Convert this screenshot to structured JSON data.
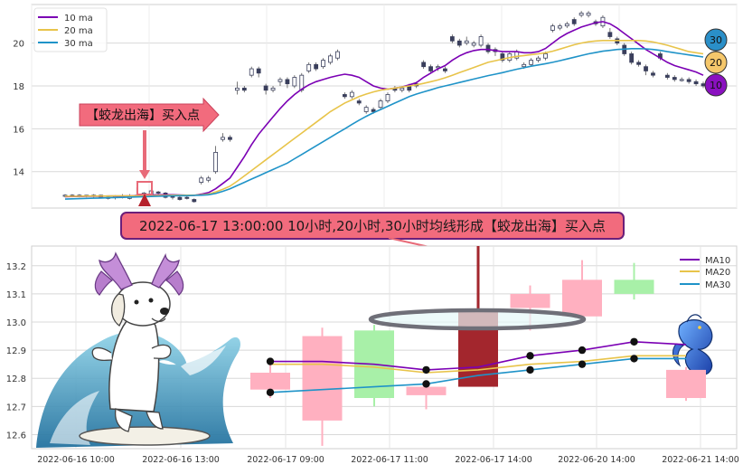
{
  "colors": {
    "ma10": "#7b00b4",
    "ma20": "#e8c44a",
    "ma30": "#1f93c8",
    "up": "#a8f0a8",
    "down": "#ffb0c0",
    "highlight": "#a3262d",
    "arrow": "#e86a78",
    "banner_fill": "#f26b7d",
    "banner_border": "#6b1f7a",
    "grid": "#d8d8d8"
  },
  "annotation": {
    "arrow_label": "【蛟龙出海】买入点",
    "banner": "2022-06-17 13:00:00 10小时,20小时,30小时均线形成【蛟龙出海】买入点",
    "markers": [
      "30",
      "20",
      "10"
    ]
  },
  "chart_data": [
    {
      "type": "candlestick",
      "legend_position": "top-left",
      "grid": true,
      "ylim": [
        12.3,
        21.8
      ],
      "y_ticks": [
        "14",
        "16",
        "18",
        "20"
      ],
      "legend": [
        {
          "name": "10 ma",
          "color": "#7b00b4"
        },
        {
          "name": "20 ma",
          "color": "#e8c44a"
        },
        {
          "name": "30 ma",
          "color": "#1f93c8"
        }
      ],
      "candles": [
        [
          12.85,
          12.9,
          12.8,
          12.95
        ],
        [
          12.9,
          12.85,
          12.8,
          12.95
        ],
        [
          12.85,
          12.9,
          12.8,
          12.95
        ],
        [
          12.9,
          12.85,
          12.8,
          12.92
        ],
        [
          12.85,
          12.9,
          12.75,
          12.95
        ],
        [
          12.9,
          12.8,
          12.75,
          12.92
        ],
        [
          12.8,
          12.75,
          12.7,
          12.85
        ],
        [
          12.8,
          12.85,
          12.7,
          12.9
        ],
        [
          12.85,
          12.8,
          12.75,
          12.95
        ],
        [
          12.75,
          12.85,
          12.7,
          12.95
        ],
        [
          12.85,
          12.9,
          12.8,
          13.27
        ],
        [
          12.9,
          13.0,
          12.85,
          13.05
        ],
        [
          12.95,
          13.1,
          12.9,
          13.15
        ],
        [
          13.05,
          13.0,
          12.95,
          13.1
        ],
        [
          13.0,
          12.8,
          12.75,
          13.05
        ],
        [
          12.85,
          12.8,
          12.7,
          12.9
        ],
        [
          12.8,
          12.7,
          12.65,
          12.85
        ],
        [
          12.8,
          12.75,
          12.7,
          12.85
        ],
        [
          12.7,
          12.6,
          12.55,
          12.75
        ],
        [
          13.5,
          13.7,
          13.4,
          13.8
        ],
        [
          13.6,
          13.7,
          13.5,
          13.8
        ],
        [
          14.0,
          14.9,
          13.9,
          15.2
        ],
        [
          15.5,
          15.6,
          15.4,
          15.8
        ],
        [
          15.6,
          15.5,
          15.4,
          15.7
        ],
        [
          17.8,
          17.9,
          17.6,
          18.2
        ],
        [
          17.9,
          17.8,
          17.7,
          18.0
        ],
        [
          18.5,
          18.8,
          18.4,
          18.9
        ],
        [
          18.8,
          18.6,
          18.4,
          18.9
        ],
        [
          18.0,
          17.8,
          17.6,
          18.1
        ],
        [
          17.8,
          17.9,
          17.7,
          18.0
        ],
        [
          18.2,
          18.3,
          18.0,
          18.4
        ],
        [
          18.3,
          18.1,
          17.9,
          18.4
        ],
        [
          18.0,
          18.4,
          17.9,
          18.5
        ],
        [
          17.8,
          18.5,
          17.7,
          18.6
        ],
        [
          18.7,
          19.0,
          18.6,
          19.1
        ],
        [
          19.0,
          18.8,
          18.7,
          19.1
        ],
        [
          18.9,
          19.2,
          18.8,
          19.3
        ],
        [
          19.1,
          19.4,
          19.0,
          19.5
        ],
        [
          19.3,
          19.6,
          19.2,
          19.7
        ],
        [
          17.6,
          17.5,
          17.4,
          17.7
        ],
        [
          17.5,
          17.7,
          17.4,
          17.8
        ],
        [
          17.3,
          17.2,
          17.1,
          17.4
        ],
        [
          16.8,
          17.0,
          16.7,
          17.1
        ],
        [
          16.9,
          16.8,
          16.7,
          17.0
        ],
        [
          17.0,
          17.3,
          16.9,
          17.4
        ],
        [
          17.3,
          17.6,
          17.2,
          17.7
        ],
        [
          17.9,
          17.8,
          17.7,
          18.0
        ],
        [
          17.8,
          17.9,
          17.7,
          18.0
        ],
        [
          18.0,
          17.8,
          17.7,
          18.1
        ],
        [
          18.1,
          18.0,
          17.9,
          18.2
        ],
        [
          19.1,
          18.9,
          18.8,
          19.2
        ],
        [
          18.9,
          18.7,
          18.6,
          19.0
        ],
        [
          18.9,
          18.9,
          18.7,
          19.0
        ],
        [
          18.8,
          18.7,
          18.6,
          18.9
        ],
        [
          20.3,
          20.1,
          20.0,
          20.4
        ],
        [
          20.1,
          19.9,
          19.8,
          20.2
        ],
        [
          20.0,
          20.1,
          19.9,
          20.3
        ],
        [
          19.9,
          20.0,
          19.8,
          20.1
        ],
        [
          19.9,
          20.3,
          19.8,
          20.4
        ],
        [
          19.9,
          19.6,
          19.5,
          20.0
        ],
        [
          19.7,
          19.6,
          19.4,
          19.8
        ],
        [
          19.5,
          19.2,
          19.1,
          19.6
        ],
        [
          19.2,
          19.5,
          19.1,
          19.6
        ],
        [
          19.3,
          19.6,
          19.2,
          19.7
        ],
        [
          18.9,
          19.0,
          18.8,
          19.1
        ],
        [
          19.0,
          19.2,
          18.9,
          19.3
        ],
        [
          19.2,
          19.3,
          19.1,
          19.4
        ],
        [
          19.3,
          19.5,
          19.2,
          19.6
        ],
        [
          20.6,
          20.8,
          20.5,
          20.9
        ],
        [
          20.7,
          20.8,
          20.6,
          20.9
        ],
        [
          20.8,
          20.9,
          20.7,
          21.0
        ],
        [
          21.1,
          20.9,
          20.8,
          21.2
        ],
        [
          21.3,
          21.4,
          21.2,
          21.5
        ],
        [
          21.3,
          21.4,
          21.2,
          21.5
        ],
        [
          21.0,
          20.9,
          20.8,
          21.1
        ],
        [
          20.8,
          21.2,
          20.7,
          21.3
        ],
        [
          20.5,
          20.3,
          20.2,
          20.7
        ],
        [
          20.2,
          20.0,
          19.9,
          20.3
        ],
        [
          19.9,
          19.5,
          19.4,
          20.0
        ],
        [
          19.5,
          19.1,
          19.0,
          19.6
        ],
        [
          19.1,
          19.0,
          18.9,
          19.2
        ],
        [
          18.9,
          18.7,
          18.5,
          19.0
        ],
        [
          18.6,
          18.5,
          18.4,
          18.7
        ],
        [
          19.5,
          19.3,
          19.2,
          19.6
        ],
        [
          18.5,
          18.4,
          18.3,
          18.6
        ],
        [
          18.4,
          18.3,
          18.2,
          18.5
        ],
        [
          18.3,
          18.3,
          18.2,
          18.4
        ],
        [
          18.3,
          18.2,
          18.1,
          18.4
        ],
        [
          18.2,
          18.1,
          18.0,
          18.3
        ],
        [
          18.1,
          18.0,
          17.9,
          18.2
        ]
      ],
      "ma10": [
        12.83,
        12.84,
        12.84,
        12.85,
        12.85,
        12.85,
        12.86,
        12.86,
        12.86,
        12.87,
        12.88,
        12.89,
        12.91,
        12.92,
        12.92,
        12.92,
        12.91,
        12.9,
        12.89,
        12.95,
        13.02,
        13.2,
        13.45,
        13.7,
        14.2,
        14.7,
        15.25,
        15.75,
        16.15,
        16.55,
        16.95,
        17.3,
        17.6,
        17.85,
        18.05,
        18.2,
        18.3,
        18.4,
        18.48,
        18.55,
        18.5,
        18.4,
        18.2,
        18.0,
        17.9,
        17.85,
        17.9,
        17.95,
        18.05,
        18.15,
        18.4,
        18.6,
        18.8,
        18.95,
        19.2,
        19.4,
        19.55,
        19.65,
        19.7,
        19.7,
        19.65,
        19.6,
        19.6,
        19.6,
        19.55,
        19.55,
        19.6,
        19.75,
        20.0,
        20.25,
        20.45,
        20.6,
        20.75,
        20.85,
        20.95,
        21.0,
        20.9,
        20.7,
        20.45,
        20.2,
        19.95,
        19.7,
        19.5,
        19.3,
        19.1,
        18.95,
        18.85,
        18.75,
        18.65,
        18.5
      ],
      "ma20": [
        12.85,
        12.85,
        12.85,
        12.86,
        12.86,
        12.86,
        12.86,
        12.87,
        12.87,
        12.87,
        12.87,
        12.88,
        12.88,
        12.89,
        12.89,
        12.9,
        12.9,
        12.9,
        12.9,
        12.92,
        12.95,
        13.05,
        13.18,
        13.32,
        13.55,
        13.8,
        14.05,
        14.3,
        14.55,
        14.8,
        15.05,
        15.3,
        15.55,
        15.8,
        16.05,
        16.3,
        16.55,
        16.8,
        17.0,
        17.2,
        17.35,
        17.5,
        17.62,
        17.72,
        17.8,
        17.85,
        17.9,
        17.95,
        18.0,
        18.05,
        18.12,
        18.2,
        18.28,
        18.38,
        18.5,
        18.62,
        18.74,
        18.86,
        18.98,
        19.1,
        19.18,
        19.25,
        19.32,
        19.38,
        19.42,
        19.46,
        19.5,
        19.55,
        19.62,
        19.72,
        19.82,
        19.92,
        20.0,
        20.06,
        20.1,
        20.12,
        20.12,
        20.12,
        20.12,
        20.12,
        20.12,
        20.1,
        20.05,
        19.98,
        19.9,
        19.8,
        19.7,
        19.6,
        19.55,
        19.5
      ],
      "ma30": [
        12.72,
        12.73,
        12.74,
        12.75,
        12.76,
        12.77,
        12.78,
        12.79,
        12.8,
        12.81,
        12.82,
        12.83,
        12.84,
        12.85,
        12.86,
        12.87,
        12.88,
        12.88,
        12.89,
        12.9,
        12.92,
        12.98,
        13.08,
        13.2,
        13.35,
        13.5,
        13.65,
        13.8,
        13.95,
        14.1,
        14.25,
        14.4,
        14.6,
        14.8,
        15.0,
        15.2,
        15.4,
        15.6,
        15.8,
        16.0,
        16.2,
        16.4,
        16.58,
        16.75,
        16.9,
        17.05,
        17.2,
        17.35,
        17.5,
        17.62,
        17.72,
        17.82,
        17.92,
        18.0,
        18.08,
        18.16,
        18.24,
        18.32,
        18.4,
        18.48,
        18.55,
        18.62,
        18.7,
        18.78,
        18.85,
        18.92,
        18.98,
        19.04,
        19.1,
        19.18,
        19.26,
        19.34,
        19.42,
        19.5,
        19.56,
        19.62,
        19.66,
        19.7,
        19.72,
        19.74,
        19.74,
        19.73,
        19.7,
        19.66,
        19.6,
        19.55,
        19.5,
        19.45,
        19.4,
        19.35
      ]
    },
    {
      "type": "candlestick",
      "legend_position": "top-right",
      "grid": true,
      "ylim": [
        12.55,
        13.27
      ],
      "y_ticks": [
        "12.6",
        "12.7",
        "12.8",
        "12.9",
        "13.0",
        "13.1",
        "13.2"
      ],
      "x_tick_labels": [
        "2022-06-16 10:00",
        "2022-06-16 13:00",
        "2022-06-17 09:00",
        "2022-06-17 11:00",
        "2022-06-17 14:00",
        "2022-06-20 14:00",
        "2022-06-21 14:00"
      ],
      "legend": [
        {
          "name": "MA10",
          "color": "#7b00b4"
        },
        {
          "name": "MA20",
          "color": "#e8c44a"
        },
        {
          "name": "MA30",
          "color": "#1f93c8"
        }
      ],
      "candles": [
        {
          "o": 12.82,
          "c": 12.76,
          "h": 12.86,
          "l": 12.73
        },
        {
          "o": 12.95,
          "c": 12.65,
          "h": 12.98,
          "l": 12.56
        },
        {
          "o": 12.73,
          "c": 12.97,
          "h": 12.99,
          "l": 12.7
        },
        {
          "o": 12.77,
          "c": 12.74,
          "h": 12.79,
          "l": 12.69
        },
        {
          "o": 12.77,
          "c": 13.04,
          "h": 13.27,
          "l": 12.77,
          "highlight": true
        },
        {
          "o": 13.1,
          "c": 13.05,
          "h": 13.13,
          "l": 12.97
        },
        {
          "o": 13.15,
          "c": 13.02,
          "h": 13.22,
          "l": 13.01
        },
        {
          "o": 13.1,
          "c": 13.15,
          "h": 13.21,
          "l": 13.08
        },
        {
          "o": 12.83,
          "c": 12.73,
          "h": 12.84,
          "l": 12.72
        }
      ],
      "ma10": [
        12.86,
        12.86,
        12.85,
        12.83,
        12.84,
        12.88,
        12.9,
        12.93,
        12.92
      ],
      "ma20": [
        12.85,
        12.85,
        12.84,
        12.82,
        12.83,
        12.85,
        12.86,
        12.88,
        12.88
      ],
      "ma30": [
        12.75,
        12.76,
        12.77,
        12.78,
        12.81,
        12.83,
        12.85,
        12.87,
        12.87
      ]
    }
  ]
}
